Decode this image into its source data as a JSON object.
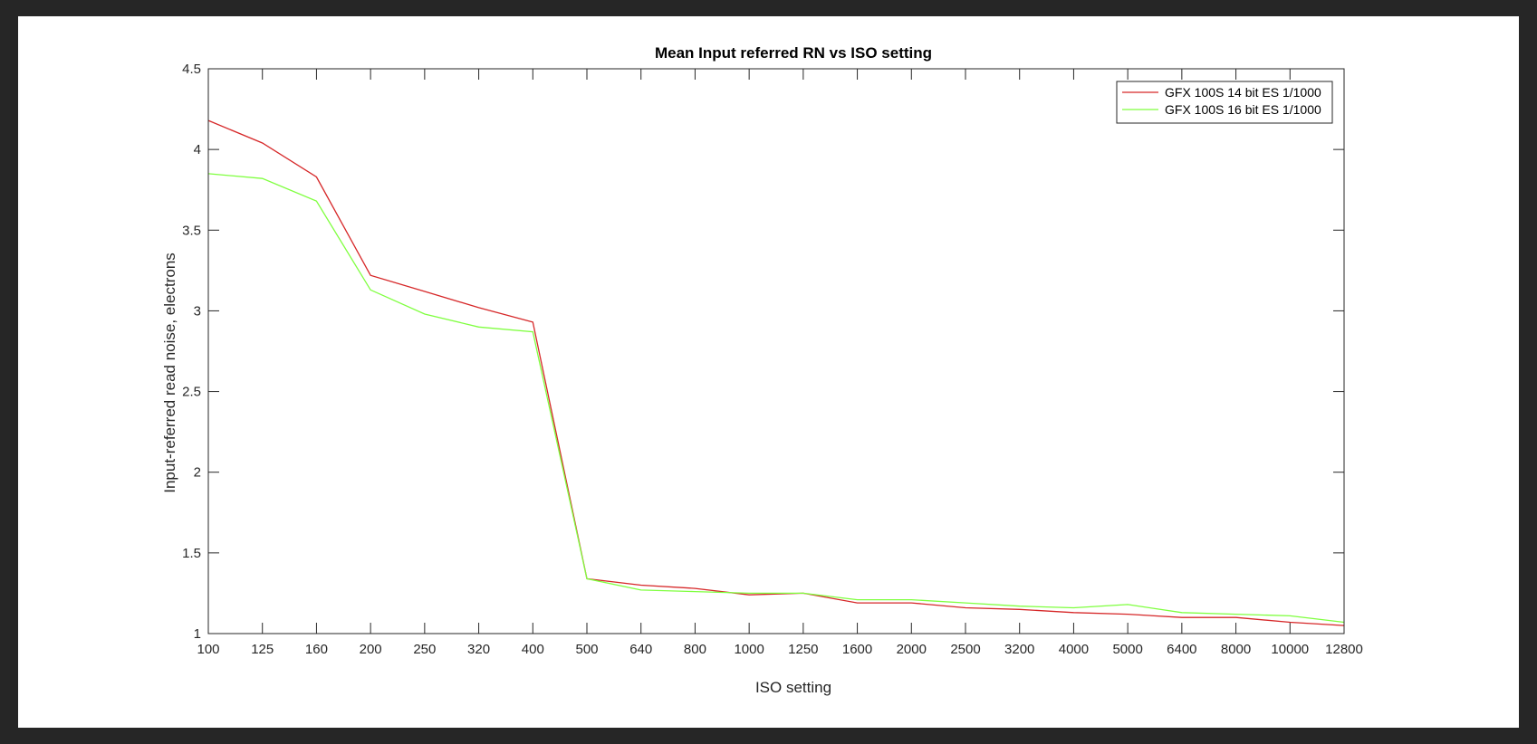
{
  "chart_data": {
    "type": "line",
    "title": "Mean Input referred RN vs ISO setting",
    "xlabel": "ISO setting",
    "ylabel": "Input-referred read noise, electrons",
    "x_scale": "log",
    "x": [
      100,
      125,
      160,
      200,
      250,
      320,
      400,
      500,
      640,
      800,
      1000,
      1250,
      1600,
      2000,
      2500,
      3200,
      4000,
      5000,
      6400,
      8000,
      10000,
      12800
    ],
    "x_ticks": [
      "100",
      "125",
      "160",
      "200",
      "250",
      "320",
      "400",
      "500",
      "640",
      "800",
      "1000",
      "1250",
      "1600",
      "2000",
      "2500",
      "3200",
      "4000",
      "5000",
      "6400",
      "8000",
      "10000",
      "12800"
    ],
    "ylim": [
      1,
      4.5
    ],
    "y_ticks": [
      "1",
      "1.5",
      "2",
      "2.5",
      "3",
      "3.5",
      "4",
      "4.5"
    ],
    "grid": false,
    "legend_position": "top-right",
    "series": [
      {
        "name": "GFX 100S 14 bit ES 1/1000",
        "color": "#d62728",
        "values": [
          4.18,
          4.04,
          3.83,
          3.22,
          3.12,
          3.02,
          2.93,
          1.34,
          1.3,
          1.28,
          1.24,
          1.25,
          1.19,
          1.19,
          1.16,
          1.15,
          1.13,
          1.12,
          1.1,
          1.1,
          1.07,
          1.05
        ]
      },
      {
        "name": "GFX 100S 16 bit ES 1/1000",
        "color": "#7fff3f",
        "values": [
          3.85,
          3.82,
          3.68,
          3.13,
          2.98,
          2.9,
          2.87,
          1.34,
          1.27,
          1.26,
          1.25,
          1.25,
          1.21,
          1.21,
          1.19,
          1.17,
          1.16,
          1.18,
          1.13,
          1.12,
          1.11,
          1.07
        ]
      }
    ]
  }
}
